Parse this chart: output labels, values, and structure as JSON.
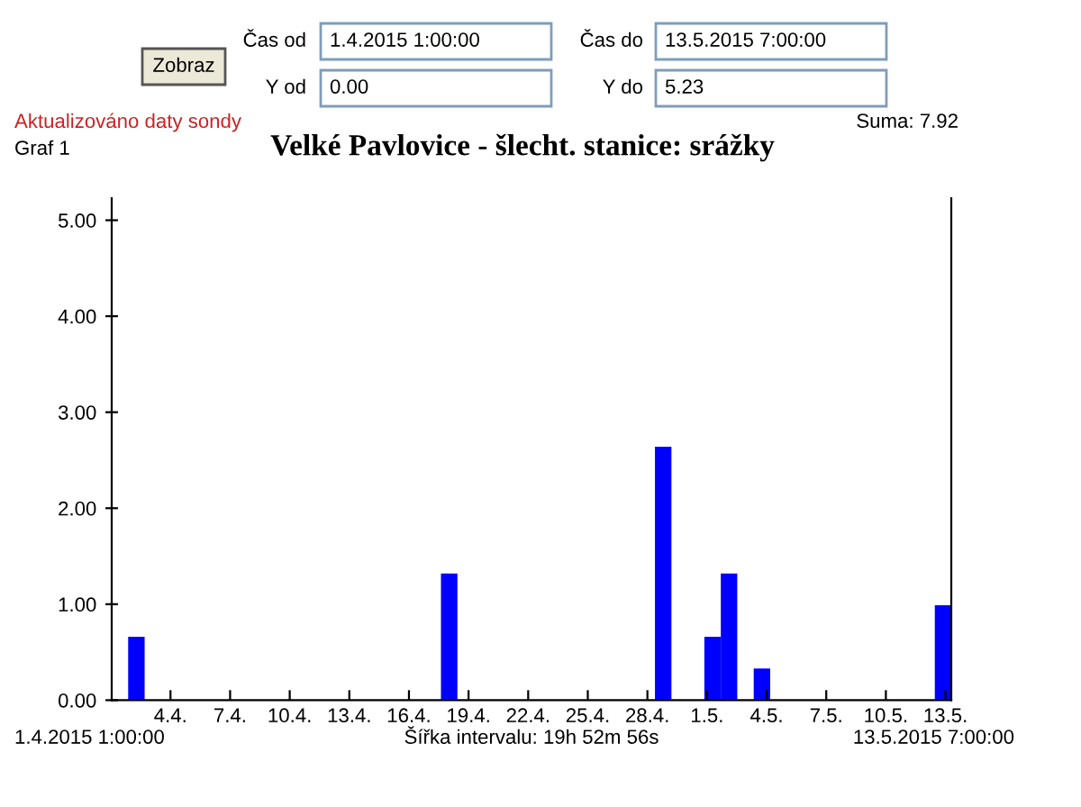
{
  "chart_data": {
    "type": "histogram",
    "title": "Velké Pavlovice - šlecht. stanice: srážky",
    "bins": [
      "2015-04-01T01:00",
      "2015-04-01T20:53",
      "2015-04-02T16:46",
      "2015-04-03T12:39",
      "2015-04-04T08:32",
      "2015-04-05T04:25",
      "2015-04-06T00:18",
      "2015-04-06T20:11",
      "2015-04-07T16:03",
      "2015-04-08T11:56",
      "2015-04-09T07:49",
      "2015-04-10T03:42",
      "2015-04-10T23:35",
      "2015-04-11T19:28",
      "2015-04-12T15:21",
      "2015-04-13T11:14",
      "2015-04-14T07:07",
      "2015-04-15T03:00",
      "2015-04-15T22:53",
      "2015-04-16T18:46",
      "2015-04-17T14:39",
      "2015-04-18T10:32",
      "2015-04-19T06:25",
      "2015-04-20T02:17",
      "2015-04-20T22:10",
      "2015-04-21T18:03",
      "2015-04-22T13:56",
      "2015-04-23T09:49",
      "2015-04-24T05:42",
      "2015-04-25T01:35",
      "2015-04-25T21:28",
      "2015-04-26T17:21",
      "2015-04-27T13:14",
      "2015-04-28T09:07",
      "2015-04-29T05:00",
      "2015-04-30T00:53",
      "2015-04-30T20:46",
      "2015-05-01T16:39",
      "2015-05-02T12:31",
      "2015-05-03T08:24",
      "2015-05-04T04:17",
      "2015-05-05T00:10",
      "2015-05-05T20:03",
      "2015-05-06T15:56",
      "2015-05-07T11:49",
      "2015-05-08T07:42",
      "2015-05-09T03:35",
      "2015-05-09T23:28",
      "2015-05-10T19:21",
      "2015-05-11T15:14",
      "2015-05-12T11:07",
      "2015-05-13T07:00"
    ],
    "values": [
      0,
      0.66,
      0,
      0,
      0,
      0,
      0,
      0,
      0,
      0,
      0,
      0,
      0,
      0,
      0,
      0,
      0,
      0,
      0,
      0,
      1.32,
      0,
      0,
      0,
      0,
      0,
      0,
      0,
      0,
      0,
      0,
      0,
      0,
      2.64,
      0,
      0,
      0.66,
      1.32,
      0,
      0.33,
      0,
      0,
      0,
      0,
      0,
      0,
      0,
      0,
      0,
      0,
      0.99
    ],
    "color": "#0000ff",
    "xlim": [
      "2015-04-01T01:00",
      "2015-05-13T07:00"
    ],
    "xticks": [
      {
        "value": "2015-04-04",
        "label": "4.4."
      },
      {
        "value": "2015-04-07",
        "label": "7.4."
      },
      {
        "value": "2015-04-10",
        "label": "10.4."
      },
      {
        "value": "2015-04-13",
        "label": "13.4."
      },
      {
        "value": "2015-04-16",
        "label": "16.4."
      },
      {
        "value": "2015-04-19",
        "label": "19.4."
      },
      {
        "value": "2015-04-22",
        "label": "22.4."
      },
      {
        "value": "2015-04-25",
        "label": "25.4."
      },
      {
        "value": "2015-04-28",
        "label": "28.4."
      },
      {
        "value": "2015-05-01",
        "label": "1.5."
      },
      {
        "value": "2015-05-04",
        "label": "4.5."
      },
      {
        "value": "2015-05-07",
        "label": "7.5."
      },
      {
        "value": "2015-05-10",
        "label": "10.5."
      },
      {
        "value": "2015-05-13",
        "label": "13.5."
      }
    ],
    "ylim": [
      0,
      5.23
    ],
    "yticks": [
      {
        "value": 0,
        "label": "0.00"
      },
      {
        "value": 1,
        "label": "1.00"
      },
      {
        "value": 2,
        "label": "2.00"
      },
      {
        "value": 3,
        "label": "3.00"
      },
      {
        "value": 4,
        "label": "4.00"
      },
      {
        "value": 5,
        "label": "5.00"
      }
    ],
    "grid": false,
    "legend": false,
    "annotations": [
      "Zobraz",
      "Čas od",
      "1.4.2015 1:00:00",
      "Čas do",
      "13.5.2015 7:00:00",
      "Y od",
      "0.00",
      "Y do",
      "5.23",
      "Aktualizováno daty sondy",
      "Suma: 7.92",
      "Graf 1",
      "1.4.2015 1:00:00",
      "Šířka intervalu: 19h 52m 56s",
      "13.5.2015 7:00:00"
    ]
  }
}
